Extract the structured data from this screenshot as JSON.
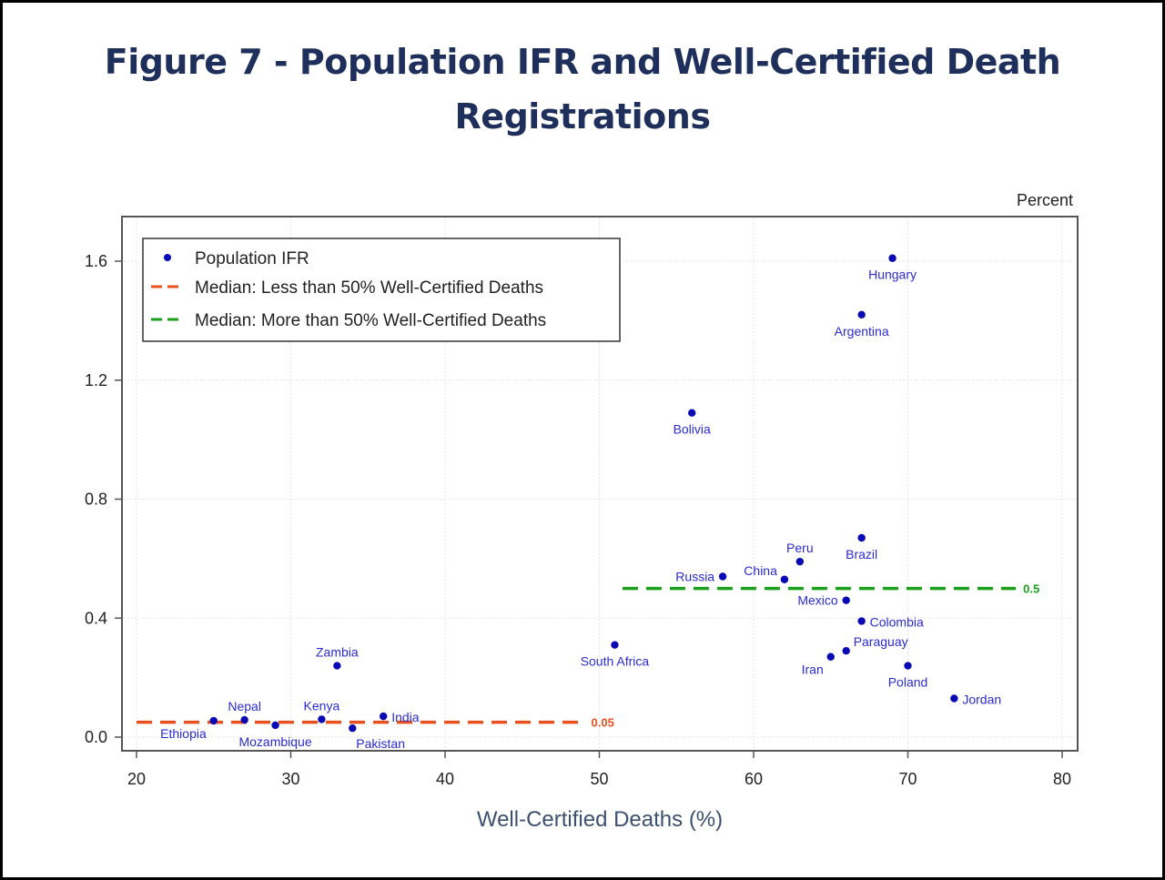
{
  "chart_data": {
    "type": "scatter",
    "title_line1": "Figure 7 - Population IFR and Well-Certified Death",
    "title_line2": "Registrations",
    "xlabel": "Well-Certified Deaths (%)",
    "ylabel": "",
    "y_unit_label": "Percent",
    "xlim": [
      20,
      80
    ],
    "ylim": [
      0.0,
      1.6
    ],
    "xticks": [
      20,
      30,
      40,
      50,
      60,
      70,
      80
    ],
    "yticks": [
      "0.0",
      "0.4",
      "0.8",
      "1.2",
      "1.6"
    ],
    "grid": true,
    "legend_position": "top-left",
    "legend": [
      {
        "label": "Population IFR",
        "type": "marker",
        "color": "#0a0ab4"
      },
      {
        "label": "Median: Less than 50% Well-Certified Deaths",
        "type": "dashed-line",
        "color": "#e8501e"
      },
      {
        "label": "Median: More than 50% Well-Certified Deaths",
        "type": "dashed-line",
        "color": "#1aa01a"
      }
    ],
    "series": [
      {
        "name": "Population IFR",
        "color": "#0a0ab4",
        "points": [
          {
            "label": "Hungary",
            "x": 69,
            "y": 1.61,
            "label_pos": "below"
          },
          {
            "label": "Argentina",
            "x": 67,
            "y": 1.42,
            "label_pos": "below"
          },
          {
            "label": "Bolivia",
            "x": 56,
            "y": 1.09,
            "label_pos": "below"
          },
          {
            "label": "Brazil",
            "x": 67,
            "y": 0.67,
            "label_pos": "below"
          },
          {
            "label": "Peru",
            "x": 63,
            "y": 0.59,
            "label_pos": "above"
          },
          {
            "label": "Russia",
            "x": 58,
            "y": 0.54,
            "label_pos": "left"
          },
          {
            "label": "China",
            "x": 62,
            "y": 0.53,
            "label_pos": "above-left"
          },
          {
            "label": "Mexico",
            "x": 66,
            "y": 0.46,
            "label_pos": "left"
          },
          {
            "label": "Colombia",
            "x": 67,
            "y": 0.39,
            "label_pos": "right"
          },
          {
            "label": "Paraguay",
            "x": 66,
            "y": 0.29,
            "label_pos": "above-right"
          },
          {
            "label": "Iran",
            "x": 65,
            "y": 0.27,
            "label_pos": "below-left"
          },
          {
            "label": "Poland",
            "x": 70,
            "y": 0.24,
            "label_pos": "below"
          },
          {
            "label": "Jordan",
            "x": 73,
            "y": 0.13,
            "label_pos": "right"
          },
          {
            "label": "South Africa",
            "x": 51,
            "y": 0.31,
            "label_pos": "below"
          },
          {
            "label": "Zambia",
            "x": 33,
            "y": 0.24,
            "label_pos": "above"
          },
          {
            "label": "Ethiopia",
            "x": 25,
            "y": 0.055,
            "label_pos": "below-left"
          },
          {
            "label": "Nepal",
            "x": 27,
            "y": 0.058,
            "label_pos": "above"
          },
          {
            "label": "Mozambique",
            "x": 29,
            "y": 0.04,
            "label_pos": "below"
          },
          {
            "label": "Kenya",
            "x": 32,
            "y": 0.06,
            "label_pos": "above"
          },
          {
            "label": "Pakistan",
            "x": 34,
            "y": 0.03,
            "label_pos": "below-right"
          },
          {
            "label": "India",
            "x": 36,
            "y": 0.07,
            "label_pos": "right"
          }
        ]
      }
    ],
    "reference_lines": [
      {
        "name": "Median: Less than 50% Well-Certified Deaths",
        "y": 0.05,
        "x_start": 20,
        "x_end": 49,
        "color": "#e8501e",
        "label": "0.05"
      },
      {
        "name": "Median: More than 50% Well-Certified Deaths",
        "y": 0.5,
        "x_start": 51.5,
        "x_end": 77,
        "color": "#1aa01a",
        "label": "0.5"
      }
    ]
  }
}
